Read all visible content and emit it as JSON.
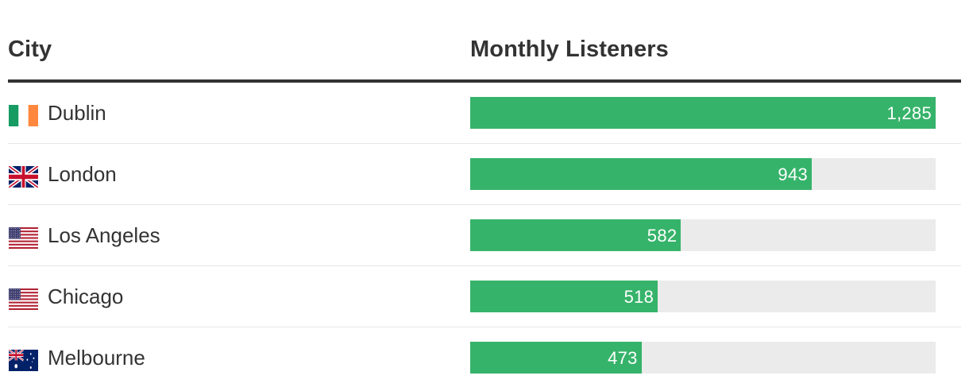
{
  "table": {
    "header_city": "City",
    "header_listeners": "Monthly Listeners"
  },
  "colors": {
    "bar": "#36b36a",
    "track": "#ebebeb"
  },
  "chart_data": {
    "type": "bar",
    "orientation": "horizontal",
    "xlabel": "Monthly Listeners",
    "ylabel": "City",
    "xlim": [
      0,
      1285
    ],
    "categories": [
      "Dublin",
      "London",
      "Los Angeles",
      "Chicago",
      "Melbourne"
    ],
    "values": [
      1285,
      943,
      582,
      518,
      473
    ],
    "value_labels": [
      "1,285",
      "943",
      "582",
      "518",
      "473"
    ],
    "flags": [
      "ireland-flag-icon",
      "uk-flag-icon",
      "usa-flag-icon",
      "usa-flag-icon",
      "australia-flag-icon"
    ]
  }
}
